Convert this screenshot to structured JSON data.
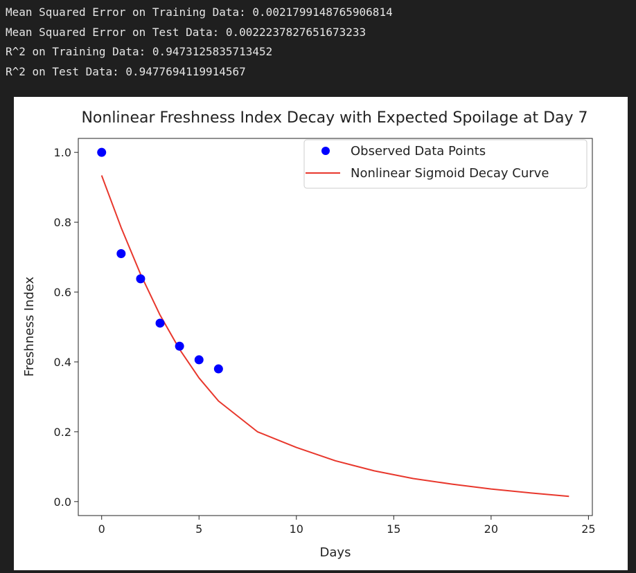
{
  "output": {
    "lines": [
      "Mean Squared Error on Training Data: 0.0021799148765906814",
      "Mean Squared Error on Test Data: 0.0022237827651673233",
      "R^2 on Training Data: 0.9473125835713452",
      "R^2 on Test Data: 0.9477694119914567"
    ]
  },
  "chart_data": {
    "type": "scatter",
    "title": "Nonlinear Freshness Index Decay with Expected Spoilage at Day 7",
    "xlabel": "Days",
    "ylabel": "Freshness Index",
    "xlim": [
      -1.2,
      25.2
    ],
    "ylim": [
      -0.04,
      1.04
    ],
    "xticks": [
      0,
      5,
      10,
      15,
      20,
      25
    ],
    "yticks": [
      0.0,
      0.2,
      0.4,
      0.6,
      0.8,
      1.0
    ],
    "grid": false,
    "legend_position": "upper right",
    "series": [
      {
        "name": "Observed Data Points",
        "kind": "scatter",
        "color": "#0000ff",
        "x": [
          0,
          1,
          2,
          3,
          4,
          5,
          6
        ],
        "y": [
          1.0,
          0.71,
          0.638,
          0.511,
          0.445,
          0.406,
          0.38
        ]
      },
      {
        "name": "Nonlinear Sigmoid Decay Curve",
        "kind": "line",
        "color": "#e8372c",
        "x": [
          0,
          1,
          2,
          3,
          4,
          5,
          6,
          8,
          10,
          12,
          14,
          16,
          18,
          20,
          22,
          24
        ],
        "y": [
          0.934,
          0.785,
          0.651,
          0.534,
          0.436,
          0.354,
          0.288,
          0.2,
          0.155,
          0.117,
          0.088,
          0.066,
          0.05,
          0.036,
          0.025,
          0.015
        ]
      }
    ]
  }
}
